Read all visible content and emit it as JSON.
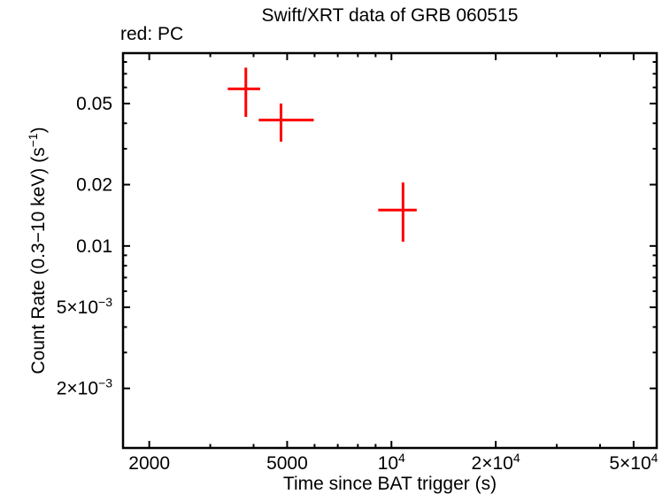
{
  "page": {
    "background": "#ffffff",
    "foreground": "#000000"
  },
  "header": {
    "title": "Swift/XRT data of GRB 060515",
    "mode_label": "red: PC"
  },
  "chart_data": {
    "type": "scatter",
    "title": "Swift/XRT data of GRB 060515",
    "subtitle": "red: PC",
    "xlabel": "Time since BAT trigger (s)",
    "ylabel": "Count Rate (0.3−10 keV) (s⁻¹)",
    "ylabel_parts": {
      "pre": "Count Rate (0.3−10 keV) (s",
      "sup": "−1",
      "post": ")"
    },
    "xscale": "log",
    "yscale": "log",
    "xlim": [
      1680,
      58300
    ],
    "ylim": [
      0.00102,
      0.0884
    ],
    "grid": false,
    "legend_position": "none",
    "axis_color": "#000000",
    "x_ticks_major": [
      {
        "v": 2000,
        "base": "2000"
      },
      {
        "v": 5000,
        "base": "5000"
      },
      {
        "v": 10000,
        "base": "10",
        "exp": "4"
      },
      {
        "v": 20000,
        "base": "2×10",
        "exp": "4"
      },
      {
        "v": 50000,
        "base": "5×10",
        "exp": "4"
      }
    ],
    "x_ticks_minor": [
      3000,
      4000,
      6000,
      7000,
      8000,
      9000,
      30000,
      40000
    ],
    "y_ticks_major": [
      {
        "v": 0.05,
        "base": "0.05"
      },
      {
        "v": 0.02,
        "base": "0.02"
      },
      {
        "v": 0.01,
        "base": "0.01"
      },
      {
        "v": 0.005,
        "base": "5×10",
        "exp": "−3"
      },
      {
        "v": 0.002,
        "base": "2×10",
        "exp": "−3"
      }
    ],
    "y_ticks_minor": [
      0.08,
      0.07,
      0.06,
      0.04,
      0.03,
      0.009,
      0.008,
      0.007,
      0.006,
      0.004,
      0.003
    ],
    "series": [
      {
        "name": "PC",
        "color": "#ff0000",
        "marker": "cross-error-bars",
        "points": [
          {
            "t": 3800,
            "t_lo": 3370,
            "t_hi": 4180,
            "rate": 0.059,
            "rate_lo": 0.043,
            "rate_hi": 0.075
          },
          {
            "t": 4800,
            "t_lo": 4140,
            "t_hi": 5970,
            "rate": 0.0415,
            "rate_lo": 0.0325,
            "rate_hi": 0.05
          },
          {
            "t": 10800,
            "t_lo": 9160,
            "t_hi": 11830,
            "rate": 0.015,
            "rate_lo": 0.0105,
            "rate_hi": 0.0205
          }
        ]
      }
    ]
  }
}
